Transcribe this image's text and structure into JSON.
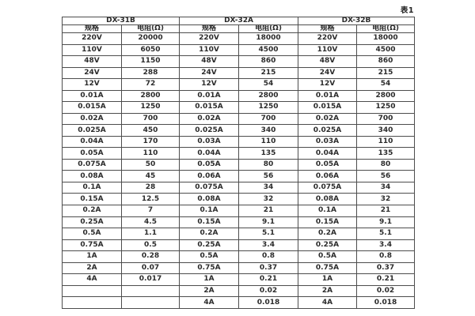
{
  "caption": "表1",
  "colors": {
    "background": "#ffffff",
    "border": "#4d4d4d",
    "text": "#2b2b2b"
  },
  "table": {
    "groups": [
      {
        "name": "DX-31B",
        "spec_header": "规格",
        "resistance_header": "电阻(Ω)"
      },
      {
        "name": "DX-32A",
        "spec_header": "规格",
        "resistance_header": "电阻(Ω)"
      },
      {
        "name": "DX-32B",
        "spec_header": "规格",
        "resistance_header": "电阻(Ω)"
      }
    ],
    "rows": [
      [
        "220V",
        "20000",
        "220V",
        "18000",
        "220V",
        "18000"
      ],
      [
        "110V",
        "6050",
        "110V",
        "4500",
        "110V",
        "4500"
      ],
      [
        "48V",
        "1150",
        "48V",
        "860",
        "48V",
        "860"
      ],
      [
        "24V",
        "288",
        "24V",
        "215",
        "24V",
        "215"
      ],
      [
        "12V",
        "72",
        "12V",
        "54",
        "12V",
        "54"
      ],
      [
        "0.01A",
        "2800",
        "0.01A",
        "2800",
        "0.01A",
        "2800"
      ],
      [
        "0.015A",
        "1250",
        "0.015A",
        "1250",
        "0.015A",
        "1250"
      ],
      [
        "0.02A",
        "700",
        "0.02A",
        "700",
        "0.02A",
        "700"
      ],
      [
        "0.025A",
        "450",
        "0.025A",
        "340",
        "0.025A",
        "340"
      ],
      [
        "0.04A",
        "170",
        "0.03A",
        "110",
        "0.03A",
        "110"
      ],
      [
        "0.05A",
        "110",
        "0.04A",
        "135",
        "0.04A",
        "135"
      ],
      [
        "0.075A",
        "50",
        "0.05A",
        "80",
        "0.05A",
        "80"
      ],
      [
        "0.08A",
        "45",
        "0.06A",
        "56",
        "0.06A",
        "56"
      ],
      [
        "0.1A",
        "28",
        "0.075A",
        "34",
        "0.075A",
        "34"
      ],
      [
        "0.15A",
        "12.5",
        "0.08A",
        "32",
        "0.08A",
        "32"
      ],
      [
        "0.2A",
        "7",
        "0.1A",
        "21",
        "0.1A",
        "21"
      ],
      [
        "0.25A",
        "4.5",
        "0.15A",
        "9.1",
        "0.15A",
        "9.1"
      ],
      [
        "0.5A",
        "1.1",
        "0.2A",
        "5.1",
        "0.2A",
        "5.1"
      ],
      [
        "0.75A",
        "0.5",
        "0.25A",
        "3.4",
        "0.25A",
        "3.4"
      ],
      [
        "1A",
        "0.28",
        "0.5A",
        "0.8",
        "0.5A",
        "0.8"
      ],
      [
        "2A",
        "0.07",
        "0.75A",
        "0.37",
        "0.75A",
        "0.37"
      ],
      [
        "4A",
        "0.017",
        "1A",
        "0.21",
        "1A",
        "0.21"
      ],
      [
        "",
        "",
        "2A",
        "0.02",
        "2A",
        "0.02"
      ],
      [
        "",
        "",
        "4A",
        "0.018",
        "4A",
        "0.018"
      ]
    ]
  }
}
